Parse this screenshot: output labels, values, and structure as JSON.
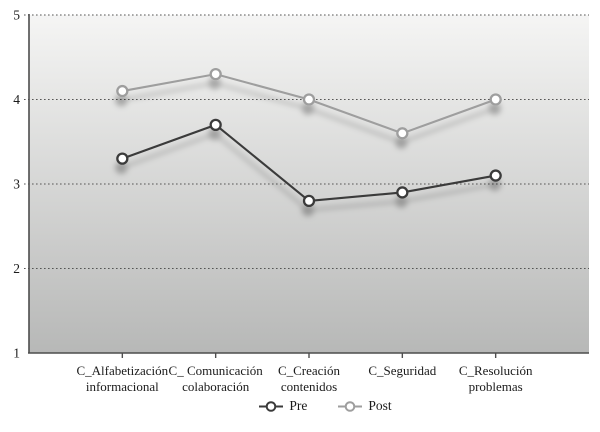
{
  "chart_data": {
    "type": "line",
    "categories": [
      [
        "C_Alfabetización",
        "informacional"
      ],
      [
        "C_ Comunicación",
        "colaboración"
      ],
      [
        "C_Creación",
        "contenidos"
      ],
      [
        "C_Seguridad"
      ],
      [
        "C_Resolución",
        "problemas"
      ]
    ],
    "series": [
      {
        "name": "Pre",
        "values": [
          3.3,
          3.7,
          2.8,
          2.9,
          3.1
        ],
        "color": "#3a3a3a"
      },
      {
        "name": "Post",
        "values": [
          4.1,
          4.3,
          4.0,
          3.6,
          4.0
        ],
        "color": "#9e9e9e"
      }
    ],
    "title": "",
    "xlabel": "",
    "ylabel": "",
    "ylim": [
      1,
      5
    ],
    "yticks": [
      1,
      2,
      3,
      4,
      5
    ],
    "ytick_labels": [
      "1",
      "2",
      "3",
      "4",
      "5"
    ],
    "grid": "horizontal dashed gridlines at 2, 3, 4, 5",
    "legend_position": "bottom-center",
    "marker": "open-circle",
    "styles": {
      "plot_bg_top": "#f5f5f4",
      "plot_bg_bottom": "#b7b8b7",
      "gridline_color": "#555555",
      "axis_color": "#4d4d4d",
      "text_color": "#1b1b1b",
      "marker_fill": "#ffffff"
    }
  },
  "legend": {
    "items": [
      {
        "label": "Pre"
      },
      {
        "label": "Post"
      }
    ]
  }
}
